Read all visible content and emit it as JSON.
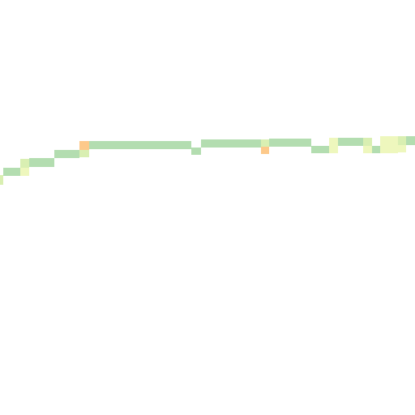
{
  "legend_colors": {
    "green": "#b3ddb0",
    "light_yellow": "#eef7bd",
    "yellow_green": "#d9efb2",
    "orange": "#fdc98a"
  },
  "tile": {
    "background": "#ffffff"
  }
}
